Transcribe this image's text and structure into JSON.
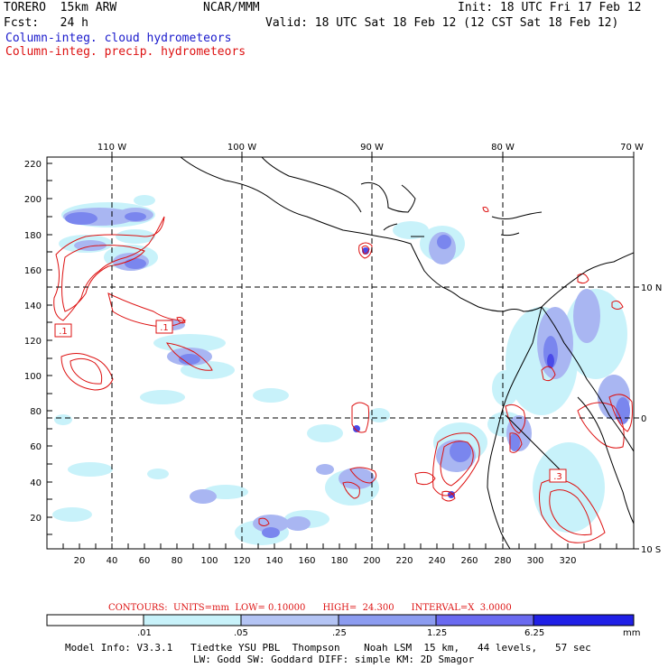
{
  "header": {
    "model": "TORERO  15km ARW",
    "org": "NCAR/MMM",
    "init": "Init: 18 UTC Fri 17 Feb 12",
    "fcst": "Fcst:   24 h",
    "valid": "Valid: 18 UTC Sat 18 Feb 12 (12 CST Sat 18 Feb 12)",
    "field1": "Column-integ. cloud hydrometeors",
    "field2": "Column-integ. precip. hydrometeors"
  },
  "colors": {
    "cloud_light": "#c8f2fa",
    "cloud_mid1": "#b4c4f4",
    "cloud_mid2": "#8c9cf0",
    "cloud_mid3": "#6a6af0",
    "cloud_dark": "#2020e6",
    "precip_contour": "#dd1111",
    "border": "#000000"
  },
  "map": {
    "top_lon_labels": [
      "110 W",
      "100 W",
      "90 W",
      "80 W",
      "70 W"
    ],
    "right_lat_labels": [
      "10 N",
      "0",
      "10 S"
    ],
    "left_y_labels": [
      "220",
      "200",
      "180",
      "160",
      "140",
      "120",
      "100",
      "80",
      "60",
      "40",
      "20"
    ],
    "bottom_x_labels": [
      "20",
      "40",
      "60",
      "80",
      "100",
      "120",
      "140",
      "160",
      "180",
      "200",
      "220",
      "240",
      "260",
      "280",
      "300",
      "320"
    ],
    "contour_labels": [
      ".1",
      ".1",
      ".3"
    ]
  },
  "footer": {
    "contours_line": "CONTOURS:  UNITS=mm  LOW= 0.10000      HIGH=  24.300      INTERVAL=X  3.0000",
    "colorbar_labels": [
      ".01",
      ".05",
      ".25",
      "1.25",
      "6.25"
    ],
    "colorbar_units": "mm",
    "model_info_1": "Model Info: V3.3.1   Tiedtke YSU PBL  Thompson    Noah LSM  15 km,   44 levels,   57 sec",
    "model_info_2": "LW: Godd SW: Goddard DIFF: simple KM: 2D Smagor"
  }
}
